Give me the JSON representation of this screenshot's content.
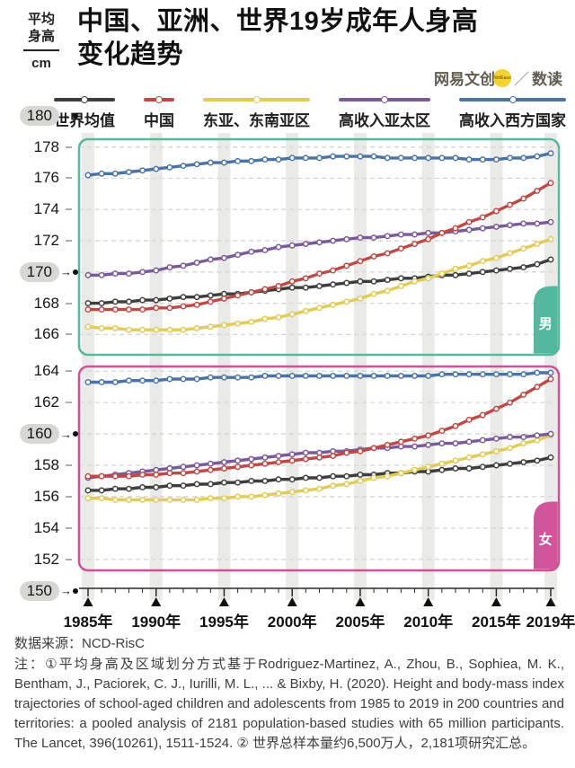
{
  "header": {
    "unit_line1": "平均",
    "unit_line2": "身高",
    "unit_line3": "cm",
    "title_line1": "中国、亚洲、世界19岁成年人身高",
    "title_line2": "变化趋势",
    "logo": {
      "brand": "网易文创",
      "badge": "NetEase",
      "separator": "／",
      "product": "数读"
    }
  },
  "footer": {
    "source": "数据来源：NCD-RisC",
    "note": "注：①平均身高及区域划分方式基于Rodriguez-Martinez, A., Zhou, B., Sophiea, M. K., Bentham, J., Paciorek, C. J., Iurilli, M. L., ... & Bixby, H. (2020). Height and body-mass index trajectories of school-aged children and adolescents from 1985 to 2019 in 200 countries and territories: a pooled analysis of 2181 population-based studies with 65 million participants. The Lancet, 396(10261), 1511-1524. ② 世界总样本量约6,500万人，2,181项研究汇总。"
  },
  "chart_data": {
    "type": "line",
    "title": "中国、亚洲、世界19岁成年人身高变化趋势",
    "ylabel": "平均身高 cm",
    "xlabel": "",
    "grid": "dashed-horizontal",
    "legend_position": "top",
    "x": [
      1985,
      1986,
      1987,
      1988,
      1989,
      1990,
      1991,
      1992,
      1993,
      1994,
      1995,
      1996,
      1997,
      1998,
      1999,
      2000,
      2001,
      2002,
      2003,
      2004,
      2005,
      2006,
      2007,
      2008,
      2009,
      2010,
      2011,
      2012,
      2013,
      2014,
      2015,
      2016,
      2017,
      2018,
      2019
    ],
    "x_tick_years": [
      1985,
      1990,
      1995,
      2000,
      2005,
      2010,
      2015,
      2019
    ],
    "x_tick_labels": [
      "1985年",
      "1990年",
      "1995年",
      "2000年",
      "2005年",
      "2010年",
      "2015年",
      "2019年"
    ],
    "legend": [
      {
        "key": "world",
        "label": "世界均值",
        "color": "#3e3e3c"
      },
      {
        "key": "china",
        "label": "中国",
        "color": "#bd4a46"
      },
      {
        "key": "esea",
        "label": "东亚、东南亚区",
        "color": "#e1cb59"
      },
      {
        "key": "hiap",
        "label": "高收入亚太区",
        "color": "#7a5a98"
      },
      {
        "key": "hiw",
        "label": "高收入西方国家",
        "color": "#4b74a5"
      }
    ],
    "yaxis": [
      {
        "panel": "male",
        "value": 180,
        "pill": true
      },
      {
        "panel": "male",
        "value": 178,
        "pill": false
      },
      {
        "panel": "male",
        "value": 176,
        "pill": false
      },
      {
        "panel": "male",
        "value": 174,
        "pill": false
      },
      {
        "panel": "male",
        "value": 172,
        "pill": false
      },
      {
        "panel": "male",
        "value": 170,
        "pill": true
      },
      {
        "panel": "male",
        "value": 168,
        "pill": false
      },
      {
        "panel": "male",
        "value": 166,
        "pill": false
      },
      {
        "panel": "female",
        "value": 164,
        "pill": false
      },
      {
        "panel": "female",
        "value": 162,
        "pill": false
      },
      {
        "panel": "female",
        "value": 160,
        "pill": true
      },
      {
        "panel": "female",
        "value": 158,
        "pill": false
      },
      {
        "panel": "female",
        "value": 156,
        "pill": false
      },
      {
        "panel": "female",
        "value": 154,
        "pill": false
      },
      {
        "panel": "female",
        "value": 152,
        "pill": false
      },
      {
        "panel": "female",
        "value": 150,
        "pill": true
      }
    ],
    "panels": [
      {
        "id": "male",
        "badge": "男",
        "border_color": "#58b99f",
        "badge_color": "#53b89d",
        "ylim": [
          164.7,
          178.5
        ],
        "gridlines": [
          178,
          176,
          174,
          172,
          170,
          168,
          166
        ],
        "series": [
          {
            "key": "world",
            "name": "世界均值",
            "values": [
              168.0,
              168.0,
              168.1,
              168.1,
              168.2,
              168.2,
              168.3,
              168.4,
              168.4,
              168.5,
              168.6,
              168.6,
              168.7,
              168.8,
              168.9,
              169.0,
              169.0,
              169.1,
              169.2,
              169.3,
              169.4,
              169.4,
              169.5,
              169.6,
              169.6,
              169.7,
              169.8,
              169.8,
              169.9,
              170.0,
              170.1,
              170.2,
              170.3,
              170.5,
              170.8
            ]
          },
          {
            "key": "esea",
            "name": "东亚、东南亚区",
            "values": [
              166.5,
              166.4,
              166.4,
              166.3,
              166.3,
              166.3,
              166.3,
              166.3,
              166.4,
              166.5,
              166.6,
              166.7,
              166.8,
              167.0,
              167.1,
              167.3,
              167.5,
              167.7,
              167.9,
              168.1,
              168.3,
              168.6,
              168.8,
              169.1,
              169.4,
              169.6,
              169.9,
              170.2,
              170.4,
              170.7,
              170.9,
              171.2,
              171.5,
              171.8,
              172.1
            ]
          },
          {
            "key": "hiap",
            "name": "高收入亚太区",
            "values": [
              169.8,
              169.8,
              169.9,
              169.9,
              170.0,
              170.1,
              170.3,
              170.4,
              170.6,
              170.8,
              170.9,
              171.1,
              171.3,
              171.4,
              171.6,
              171.7,
              171.8,
              171.9,
              172.0,
              172.1,
              172.2,
              172.2,
              172.3,
              172.4,
              172.4,
              172.5,
              172.5,
              172.6,
              172.7,
              172.8,
              172.9,
              173.0,
              173.1,
              173.1,
              173.2
            ]
          },
          {
            "key": "china",
            "name": "中国",
            "values": [
              167.6,
              167.6,
              167.6,
              167.6,
              167.6,
              167.7,
              167.7,
              167.8,
              167.9,
              168.1,
              168.3,
              168.5,
              168.7,
              168.9,
              169.1,
              169.4,
              169.6,
              169.9,
              170.1,
              170.4,
              170.7,
              171.0,
              171.2,
              171.5,
              171.8,
              172.1,
              172.5,
              172.8,
              173.2,
              173.5,
              173.9,
              174.3,
              174.7,
              175.2,
              175.7
            ]
          },
          {
            "key": "hiw",
            "name": "高收入西方国家",
            "values": [
              176.2,
              176.3,
              176.3,
              176.4,
              176.5,
              176.6,
              176.7,
              176.8,
              176.9,
              177.0,
              177.0,
              177.1,
              177.1,
              177.2,
              177.2,
              177.3,
              177.3,
              177.3,
              177.4,
              177.4,
              177.4,
              177.4,
              177.3,
              177.3,
              177.3,
              177.3,
              177.3,
              177.3,
              177.2,
              177.2,
              177.2,
              177.3,
              177.3,
              177.4,
              177.6
            ]
          }
        ]
      },
      {
        "id": "female",
        "badge": "女",
        "border_color": "#ce5295",
        "badge_color": "#d2549b",
        "ylim": [
          151.3,
          164.3
        ],
        "gridlines": [
          164,
          162,
          160,
          158,
          156,
          154,
          152
        ],
        "series": [
          {
            "key": "world",
            "name": "世界均值",
            "values": [
              156.4,
              156.4,
              156.5,
              156.5,
              156.6,
              156.6,
              156.7,
              156.7,
              156.8,
              156.8,
              156.9,
              156.9,
              157.0,
              157.0,
              157.1,
              157.1,
              157.2,
              157.2,
              157.3,
              157.3,
              157.4,
              157.4,
              157.5,
              157.5,
              157.6,
              157.6,
              157.7,
              157.8,
              157.8,
              157.9,
              158.0,
              158.1,
              158.2,
              158.3,
              158.5
            ]
          },
          {
            "key": "esea",
            "name": "东亚、东南亚区",
            "values": [
              155.9,
              155.9,
              155.8,
              155.8,
              155.8,
              155.8,
              155.8,
              155.8,
              155.8,
              155.9,
              155.9,
              156.0,
              156.0,
              156.1,
              156.2,
              156.3,
              156.4,
              156.5,
              156.7,
              156.8,
              157.0,
              157.2,
              157.3,
              157.5,
              157.7,
              157.9,
              158.1,
              158.3,
              158.5,
              158.7,
              158.9,
              159.1,
              159.4,
              159.6,
              159.9
            ]
          },
          {
            "key": "hiap",
            "name": "高收入亚太区",
            "values": [
              157.2,
              157.3,
              157.4,
              157.5,
              157.6,
              157.7,
              157.8,
              157.9,
              158.0,
              158.1,
              158.2,
              158.3,
              158.4,
              158.5,
              158.6,
              158.7,
              158.8,
              158.8,
              158.9,
              158.9,
              159.0,
              159.1,
              159.1,
              159.2,
              159.2,
              159.3,
              159.4,
              159.4,
              159.5,
              159.6,
              159.7,
              159.8,
              159.8,
              159.9,
              160.0
            ]
          },
          {
            "key": "china",
            "name": "中国",
            "values": [
              157.3,
              157.3,
              157.3,
              157.3,
              157.4,
              157.4,
              157.5,
              157.5,
              157.6,
              157.7,
              157.8,
              157.9,
              158.0,
              158.1,
              158.2,
              158.3,
              158.4,
              158.5,
              158.6,
              158.8,
              158.9,
              159.1,
              159.3,
              159.5,
              159.7,
              159.9,
              160.2,
              160.5,
              160.9,
              161.2,
              161.6,
              162.0,
              162.5,
              163.0,
              163.5
            ]
          },
          {
            "key": "hiw",
            "name": "高收入西方国家",
            "values": [
              163.3,
              163.3,
              163.3,
              163.4,
              163.4,
              163.4,
              163.5,
              163.5,
              163.5,
              163.6,
              163.6,
              163.6,
              163.6,
              163.7,
              163.7,
              163.7,
              163.7,
              163.7,
              163.7,
              163.7,
              163.7,
              163.7,
              163.7,
              163.7,
              163.7,
              163.7,
              163.8,
              163.8,
              163.8,
              163.8,
              163.8,
              163.8,
              163.8,
              163.9,
              163.9
            ]
          }
        ]
      }
    ]
  }
}
